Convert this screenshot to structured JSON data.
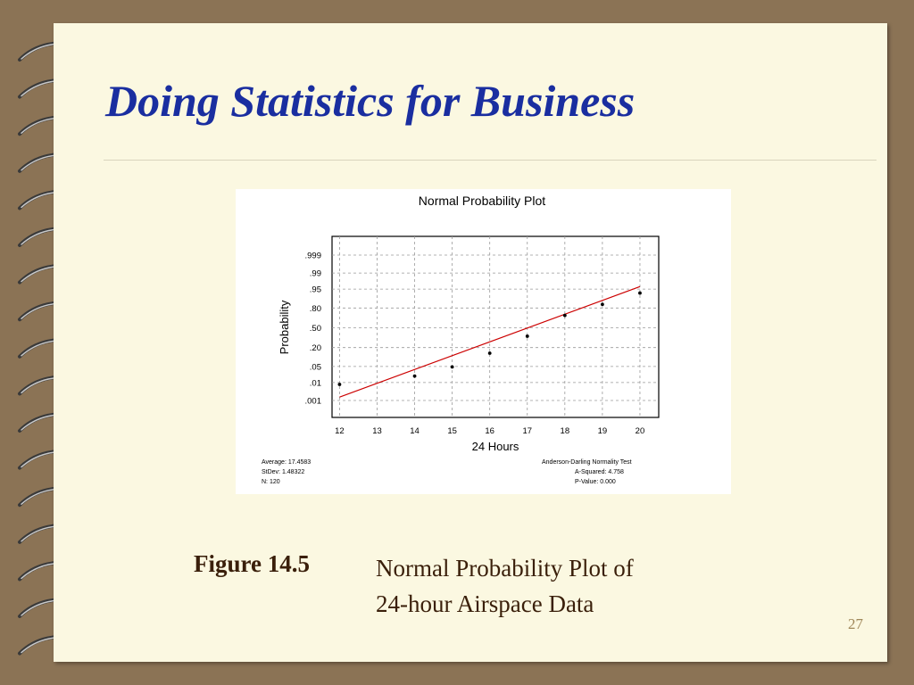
{
  "slide": {
    "title": "Doing Statistics for Business",
    "caption_label": "Figure 14.5",
    "caption_line1": "Normal Probability Plot of",
    "caption_line2": "24-hour Airspace Data",
    "slide_number": "27",
    "colors": {
      "background": "#8b7355",
      "page": "#fbf8e1",
      "title": "#1a2ea0",
      "caption": "#3a1f0a",
      "fit_line": "#cc0000"
    }
  },
  "chart_data": {
    "type": "scatter",
    "title": "Normal Probability Plot",
    "xlabel": "24 Hours",
    "ylabel": "Probability",
    "scale_y": "normal-probability",
    "grid": true,
    "x_ticks": [
      "12",
      "13",
      "14",
      "15",
      "16",
      "17",
      "18",
      "19",
      "20"
    ],
    "xlim": [
      11.8,
      20.5
    ],
    "y_ticks": [
      {
        "label": ".999",
        "p": 0.999
      },
      {
        "label": ".99",
        "p": 0.99
      },
      {
        "label": ".95",
        "p": 0.95
      },
      {
        "label": ".80",
        "p": 0.8
      },
      {
        "label": ".50",
        "p": 0.5
      },
      {
        "label": ".20",
        "p": 0.2
      },
      {
        "label": ".05",
        "p": 0.05
      },
      {
        "label": ".01",
        "p": 0.01
      },
      {
        "label": ".001",
        "p": 0.001
      }
    ],
    "points": [
      {
        "x": 12,
        "p": 0.008
      },
      {
        "x": 14,
        "p": 0.02
      },
      {
        "x": 15,
        "p": 0.048
      },
      {
        "x": 16,
        "p": 0.14
      },
      {
        "x": 17,
        "p": 0.36
      },
      {
        "x": 18,
        "p": 0.7
      },
      {
        "x": 19,
        "p": 0.84
      },
      {
        "x": 20,
        "p": 0.93
      }
    ],
    "fit_line": [
      {
        "x": 12,
        "p": 0.0016
      },
      {
        "x": 20,
        "p": 0.96
      }
    ],
    "stats_left": [
      "Average: 17.4583",
      "StDev: 1.48322",
      "N: 120"
    ],
    "stats_right": [
      "Anderson-Darling Normality Test",
      "A-Squared: 4.758",
      "P-Value:   0.000"
    ]
  }
}
